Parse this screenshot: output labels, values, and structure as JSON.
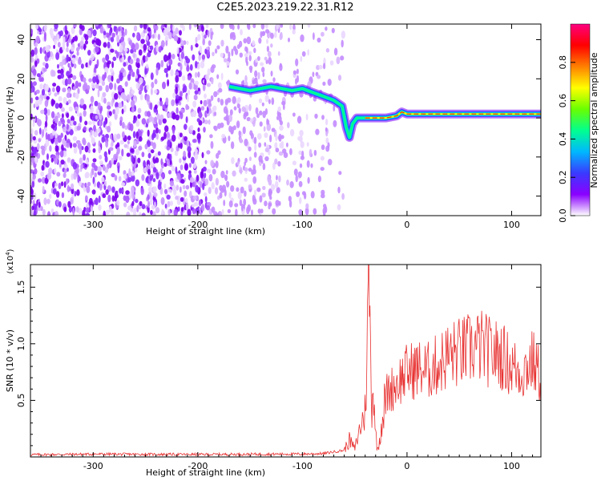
{
  "title": "C2E5.2023.219.22.31.R12",
  "chart_data": [
    {
      "type": "heatmap",
      "xlabel": "Height of straight line (km)",
      "ylabel": "Frequency (Hz)",
      "xlim": [
        -360,
        128
      ],
      "ylim": [
        -50,
        48
      ],
      "xticks": [
        -300,
        -200,
        -100,
        0,
        100
      ],
      "yticks": [
        -40,
        -20,
        0,
        20,
        40
      ],
      "colorbar": {
        "label": "Normalized spectral amplitude",
        "range": [
          0,
          1
        ],
        "ticks": [
          "0.0",
          "0.2",
          "0.4",
          "0.6",
          "0.8"
        ],
        "tick_values": [
          0,
          0.2,
          0.4,
          0.6,
          0.8
        ],
        "colors": [
          "#ffffff",
          "#8a00ff",
          "#3a3aff",
          "#00b8ff",
          "#00ff90",
          "#6aff00",
          "#ffff00",
          "#ff8000",
          "#ff0000",
          "#ff0080"
        ]
      },
      "signal_track": {
        "x": [
          -170,
          -160,
          -150,
          -140,
          -130,
          -120,
          -110,
          -100,
          -90,
          -80,
          -70,
          -62,
          -58,
          -55,
          -52,
          -48,
          -40,
          -30,
          -20,
          -10,
          -5,
          0,
          10,
          30,
          60,
          90,
          128
        ],
        "y": [
          16,
          15,
          14,
          15,
          16,
          15,
          14,
          15,
          13,
          11,
          9,
          6,
          -5,
          -10,
          -3,
          0,
          0,
          0,
          0,
          1,
          3,
          2,
          2,
          2,
          2,
          2,
          2
        ]
      },
      "noise_region_x": [
        -360,
        -80
      ]
    },
    {
      "type": "line",
      "xlabel": "Height of straight line (km)",
      "ylabel": "SNR (10 * v/v)",
      "y_multiplier": "(x10^4)",
      "y_multiplier_base": "(x10",
      "y_multiplier_exp": "4",
      "xlim": [
        -360,
        128
      ],
      "ylim": [
        0,
        17000
      ],
      "xticks": [
        -300,
        -200,
        -100,
        0,
        100
      ],
      "yticks": [
        5000,
        10000,
        15000
      ],
      "yticklabels": [
        "0.5",
        "1.0",
        "1.5"
      ],
      "color": "#e83232",
      "series": [
        {
          "x": [
            -360,
            -300,
            -200,
            -100,
            -80,
            -60,
            -55,
            -50,
            -45,
            -40,
            -36,
            -35,
            -34,
            -32,
            -30,
            -28,
            -25,
            -20,
            -15,
            -10,
            0,
            10,
            20,
            30,
            40,
            50,
            60,
            70,
            80,
            90,
            100,
            110,
            120,
            128
          ],
          "y": [
            200,
            250,
            220,
            260,
            300,
            600,
            1500,
            700,
            2500,
            4000,
            16800,
            9000,
            4500,
            6500,
            2000,
            500,
            2500,
            5500,
            6000,
            6500,
            7500,
            7800,
            7600,
            8200,
            9000,
            9200,
            9500,
            9800,
            9200,
            9000,
            8000,
            7500,
            8500,
            7000
          ]
        }
      ]
    }
  ]
}
